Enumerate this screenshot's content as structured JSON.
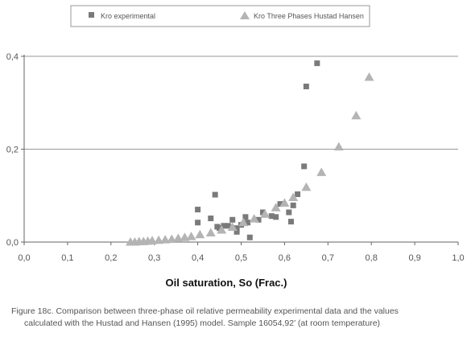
{
  "caption": {
    "line1": "Figure 18c. Comparison between three-phase oil relative permeability experimental data and the values",
    "line2": "calculated with the Hustad and  Hansen (1995) model. Sample 16054,92’ (at room temperature)"
  },
  "chart_data": {
    "type": "scatter",
    "title": "",
    "xlabel": "Oil saturation, So (Frac.)",
    "ylabel": "",
    "xlim": [
      0.0,
      1.0
    ],
    "ylim": [
      0.0,
      0.4
    ],
    "x_ticks": [
      "0,0",
      "0,1",
      "0,2",
      "0,3",
      "0,4",
      "0,5",
      "0,6",
      "0,7",
      "0,8",
      "0,9",
      "1,0"
    ],
    "y_ticks": [
      "0,0",
      "0,2",
      "0,4"
    ],
    "grid": "horizontal",
    "legend_position": "top",
    "series": [
      {
        "name": "Kro experimental",
        "marker": "square",
        "color": "#7a7a7a",
        "x": [
          0.4,
          0.4,
          0.43,
          0.44,
          0.445,
          0.45,
          0.46,
          0.47,
          0.48,
          0.49,
          0.49,
          0.5,
          0.51,
          0.515,
          0.52,
          0.54,
          0.55,
          0.57,
          0.58,
          0.59,
          0.61,
          0.615,
          0.62,
          0.63,
          0.645,
          0.65,
          0.675
        ],
        "y": [
          0.07,
          0.042,
          0.051,
          0.102,
          0.033,
          0.03,
          0.035,
          0.035,
          0.048,
          0.03,
          0.022,
          0.037,
          0.054,
          0.042,
          0.01,
          0.048,
          0.064,
          0.056,
          0.054,
          0.082,
          0.064,
          0.044,
          0.079,
          0.103,
          0.163,
          0.335,
          0.385
        ]
      },
      {
        "name": "Kro Three Phases Hustad Hansen",
        "marker": "triangle",
        "color": "#b4b4b4",
        "x": [
          0.245,
          0.255,
          0.265,
          0.275,
          0.285,
          0.295,
          0.31,
          0.325,
          0.34,
          0.355,
          0.37,
          0.385,
          0.405,
          0.43,
          0.455,
          0.48,
          0.505,
          0.53,
          0.555,
          0.58,
          0.6,
          0.62,
          0.65,
          0.685,
          0.725,
          0.765,
          0.795
        ],
        "y": [
          0.0,
          0.0,
          0.001,
          0.001,
          0.002,
          0.003,
          0.004,
          0.005,
          0.006,
          0.008,
          0.01,
          0.012,
          0.016,
          0.02,
          0.026,
          0.032,
          0.042,
          0.05,
          0.06,
          0.074,
          0.084,
          0.096,
          0.118,
          0.15,
          0.205,
          0.272,
          0.355
        ]
      }
    ]
  }
}
